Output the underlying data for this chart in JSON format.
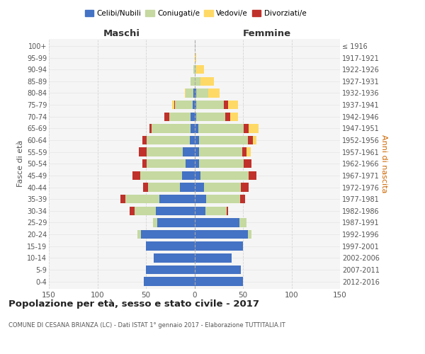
{
  "age_groups": [
    "0-4",
    "5-9",
    "10-14",
    "15-19",
    "20-24",
    "25-29",
    "30-34",
    "35-39",
    "40-44",
    "45-49",
    "50-54",
    "55-59",
    "60-64",
    "65-69",
    "70-74",
    "75-79",
    "80-84",
    "85-89",
    "90-94",
    "95-99",
    "100+"
  ],
  "anni_nascita": [
    "2012-2016",
    "2007-2011",
    "2002-2006",
    "1997-2001",
    "1992-1996",
    "1987-1991",
    "1982-1986",
    "1977-1981",
    "1972-1976",
    "1967-1971",
    "1962-1966",
    "1957-1961",
    "1952-1956",
    "1947-1951",
    "1942-1946",
    "1937-1941",
    "1932-1936",
    "1927-1931",
    "1922-1926",
    "1917-1921",
    "≤ 1916"
  ],
  "maschi": {
    "celibi": [
      52,
      50,
      42,
      50,
      55,
      38,
      40,
      36,
      15,
      13,
      9,
      12,
      5,
      4,
      4,
      2,
      1,
      0,
      0,
      0,
      0
    ],
    "coniugati": [
      0,
      0,
      0,
      0,
      4,
      5,
      22,
      35,
      33,
      43,
      40,
      37,
      44,
      40,
      22,
      18,
      8,
      4,
      1,
      0,
      0
    ],
    "vedovi": [
      0,
      0,
      0,
      0,
      0,
      0,
      0,
      0,
      0,
      0,
      0,
      0,
      0,
      0,
      0,
      2,
      1,
      0,
      0,
      0,
      0
    ],
    "divorziati": [
      0,
      0,
      0,
      0,
      0,
      0,
      5,
      5,
      5,
      8,
      5,
      8,
      5,
      2,
      5,
      1,
      0,
      0,
      0,
      0,
      0
    ]
  },
  "femmine": {
    "nubili": [
      50,
      48,
      38,
      50,
      55,
      46,
      11,
      12,
      10,
      6,
      5,
      5,
      5,
      4,
      2,
      2,
      2,
      0,
      0,
      0,
      0
    ],
    "coniugate": [
      0,
      0,
      0,
      0,
      4,
      8,
      22,
      35,
      38,
      50,
      46,
      44,
      50,
      47,
      30,
      28,
      12,
      6,
      2,
      0,
      0
    ],
    "vedove": [
      0,
      0,
      0,
      0,
      0,
      0,
      0,
      0,
      0,
      0,
      0,
      4,
      4,
      10,
      8,
      10,
      12,
      14,
      8,
      2,
      0
    ],
    "divorziate": [
      0,
      0,
      0,
      0,
      0,
      0,
      2,
      5,
      8,
      8,
      8,
      5,
      5,
      5,
      5,
      5,
      0,
      0,
      0,
      0,
      0
    ]
  },
  "colors": {
    "celibi": "#4472C4",
    "coniugati": "#C5D9A0",
    "vedovi": "#FFD966",
    "divorziati": "#C0312B"
  },
  "xlim": 150,
  "title": "Popolazione per età, sesso e stato civile - 2017",
  "subtitle": "COMUNE DI CESANA BRIANZA (LC) - Dati ISTAT 1° gennaio 2017 - Elaborazione TUTTITALIA.IT",
  "ylabel_left": "Fasce di età",
  "ylabel_right": "Anni di nascita",
  "xlabel_left": "Maschi",
  "xlabel_right": "Femmine",
  "bg_color": "#f5f5f5",
  "grid_color_x": "#cccccc",
  "grid_color_y": "#dddddd"
}
